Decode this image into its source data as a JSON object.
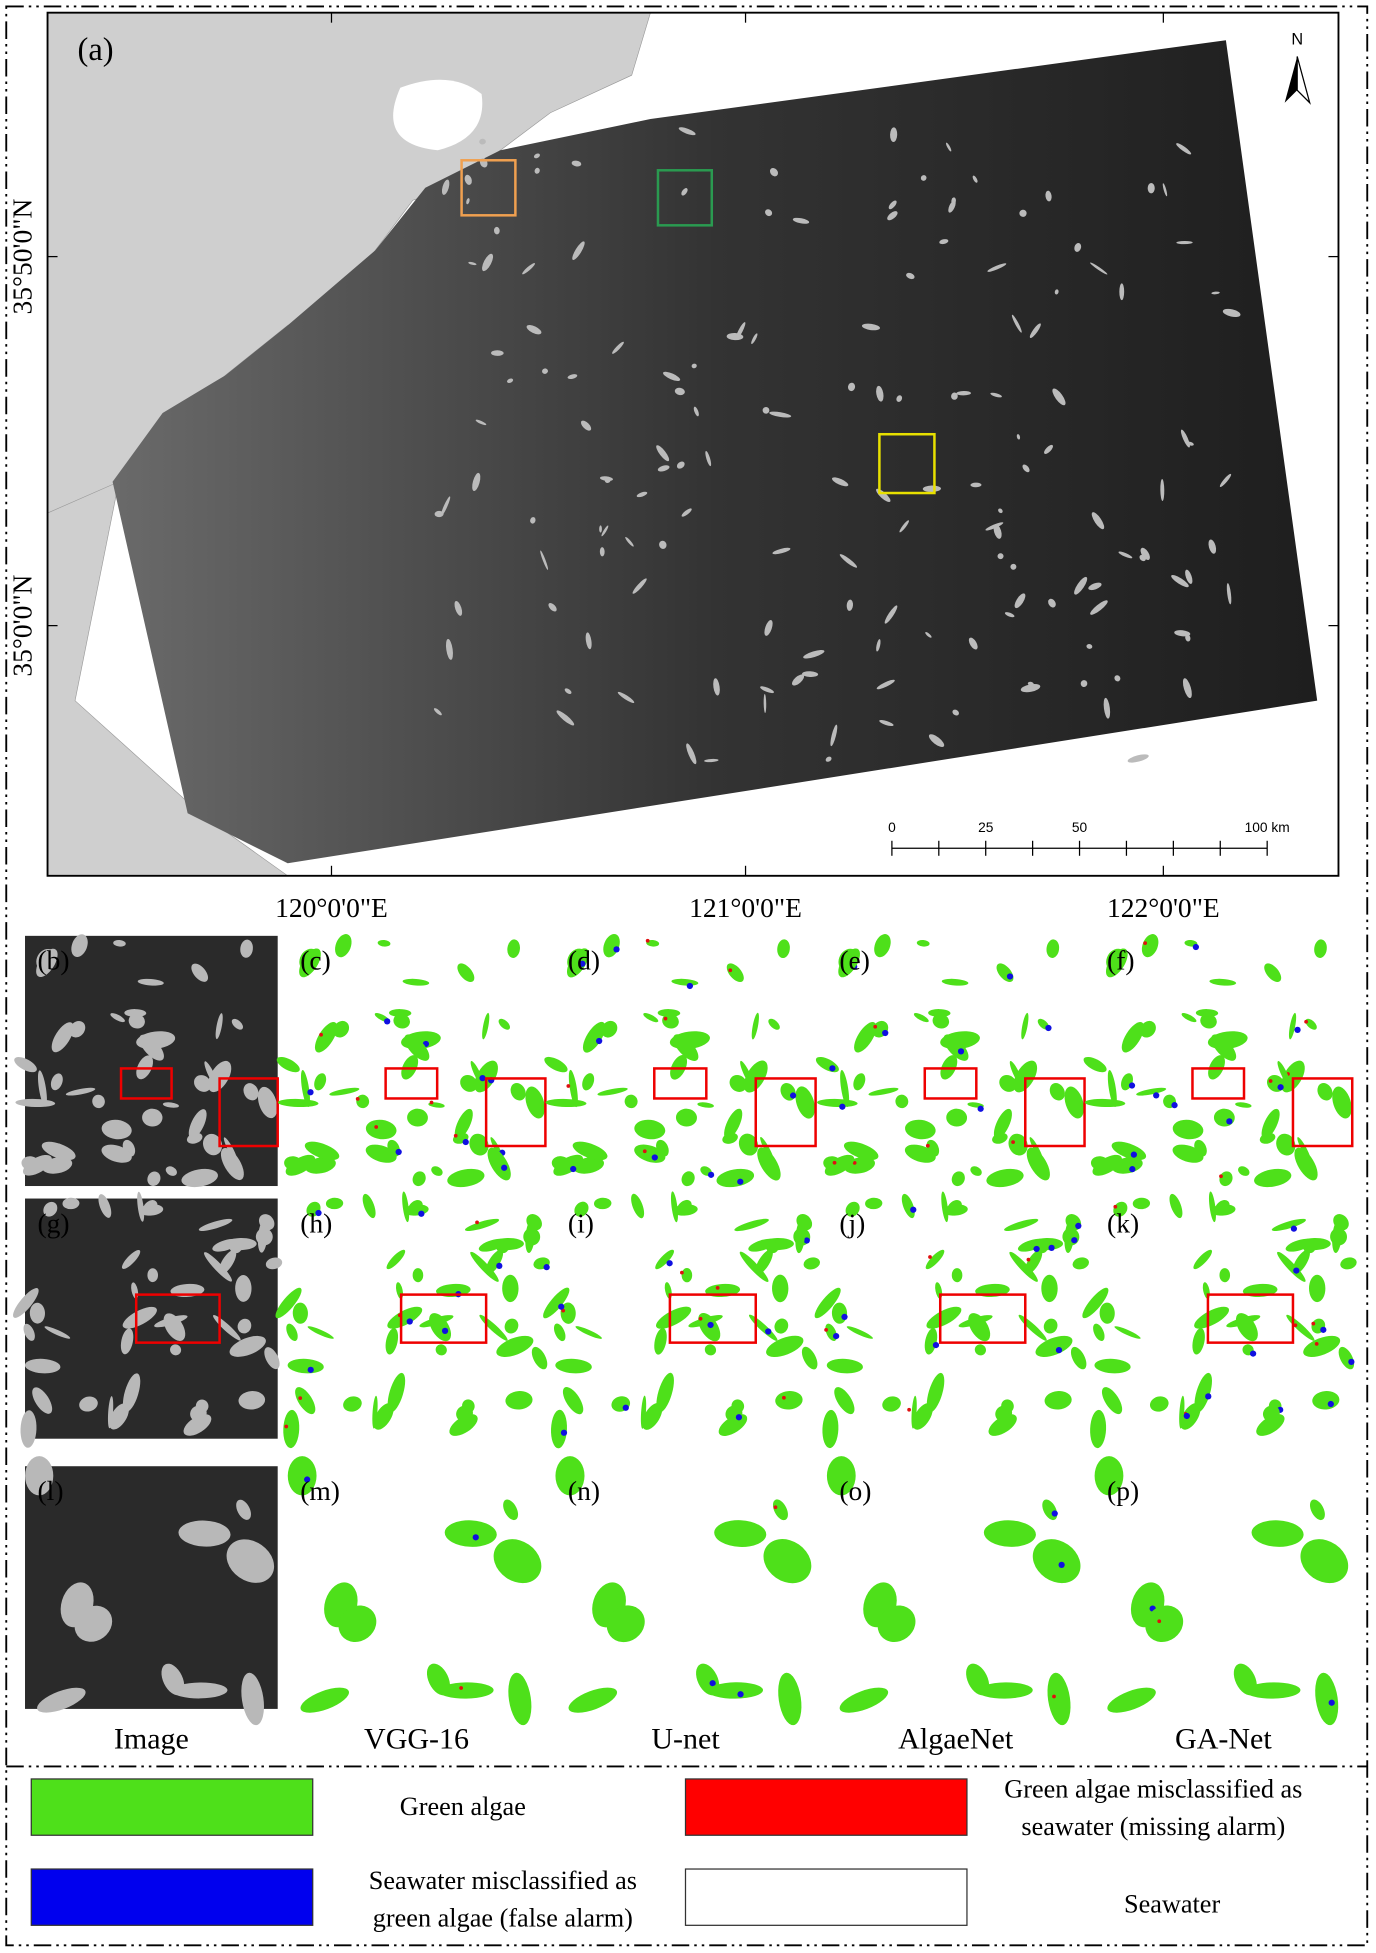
{
  "map": {
    "panel_label": "(a)",
    "north": "N",
    "lat_labels": [
      "35°50'0\"N",
      "35°0'0\"N"
    ],
    "lon_labels": [
      "120°0'0\"E",
      "121°0'0\"E",
      "122°0'0\"E"
    ],
    "scale_labels": [
      "0",
      "25",
      "50",
      "100 km"
    ]
  },
  "panels": {
    "rows": [
      [
        "(b)",
        "(c)",
        "(d)",
        "(e)",
        "(f)"
      ],
      [
        "(g)",
        "(h)",
        "(i)",
        "(j)",
        "(k)"
      ],
      [
        "(l)",
        "(m)",
        "(n)",
        "(o)",
        "(p)"
      ]
    ],
    "column_titles": [
      "Image",
      "VGG-16",
      "U-net",
      "AlgaeNet",
      "GA-Net"
    ]
  },
  "legend": {
    "items": [
      {
        "lines": [
          "Green algae"
        ]
      },
      {
        "lines": [
          "Green algae misclassified as",
          "seawater (missing alarm)"
        ]
      },
      {
        "lines": [
          "Seawater misclassified as",
          "green algae (false alarm)"
        ]
      },
      {
        "lines": [
          "Seawater"
        ]
      }
    ]
  }
}
